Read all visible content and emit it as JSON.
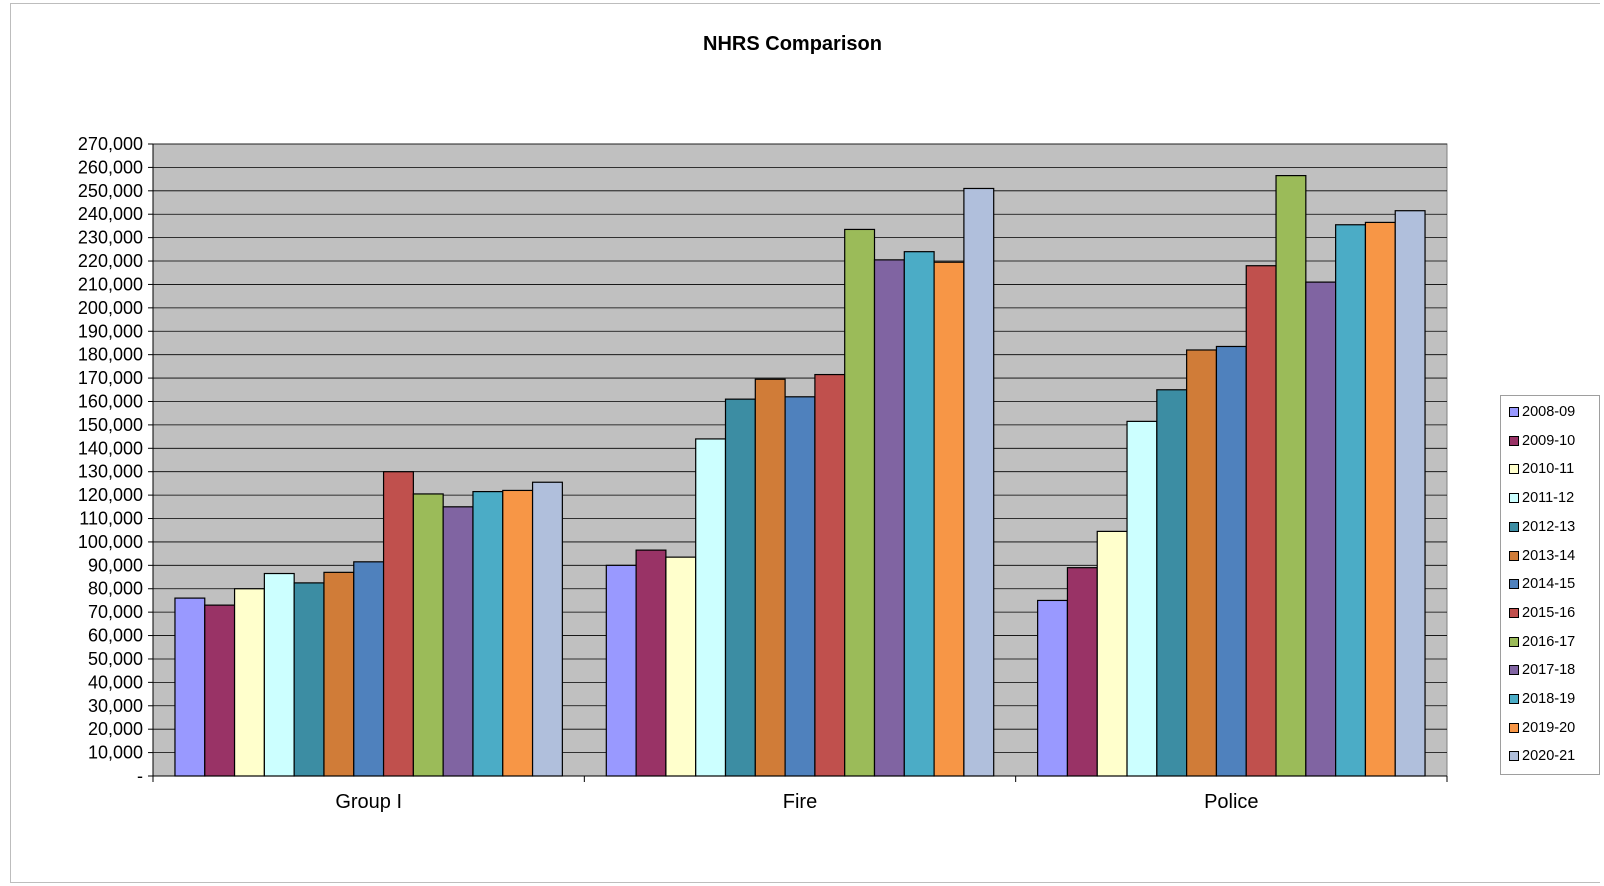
{
  "chart_data": {
    "type": "bar",
    "title": "NHRS Comparison",
    "xlabel": "",
    "ylabel": "",
    "categories": [
      "Group I",
      "Fire",
      "Police"
    ],
    "ylim": [
      0,
      270000
    ],
    "ytick_step": 10000,
    "yticks": [
      "-",
      "10,000",
      "20,000",
      "30,000",
      "40,000",
      "50,000",
      "60,000",
      "70,000",
      "80,000",
      "90,000",
      "100,000",
      "110,000",
      "120,000",
      "130,000",
      "140,000",
      "150,000",
      "160,000",
      "170,000",
      "180,000",
      "190,000",
      "200,000",
      "210,000",
      "220,000",
      "230,000",
      "240,000",
      "250,000",
      "260,000",
      "270,000"
    ],
    "grid": true,
    "legend_position": "right",
    "plot_background": "#c0c0c0",
    "series": [
      {
        "name": "2008-09",
        "color": "#9999ff",
        "values": [
          76000,
          90000,
          75000
        ]
      },
      {
        "name": "2009-10",
        "color": "#993366",
        "values": [
          73000,
          96500,
          89000
        ]
      },
      {
        "name": "2010-11",
        "color": "#ffffcc",
        "values": [
          80000,
          93500,
          104500
        ]
      },
      {
        "name": "2011-12",
        "color": "#ccffff",
        "values": [
          86500,
          144000,
          151500
        ]
      },
      {
        "name": "2012-13",
        "color": "#3c8da3",
        "values": [
          82500,
          161000,
          165000
        ]
      },
      {
        "name": "2013-14",
        "color": "#d07c38",
        "values": [
          87000,
          169500,
          182000
        ]
      },
      {
        "name": "2014-15",
        "color": "#4f81bd",
        "values": [
          91500,
          162000,
          183500
        ]
      },
      {
        "name": "2015-16",
        "color": "#c0504d",
        "values": [
          130000,
          171500,
          218000
        ]
      },
      {
        "name": "2016-17",
        "color": "#9bbb59",
        "values": [
          120500,
          233500,
          256500
        ]
      },
      {
        "name": "2017-18",
        "color": "#8064a2",
        "values": [
          115000,
          220500,
          211000
        ]
      },
      {
        "name": "2018-19",
        "color": "#4bacc6",
        "values": [
          121500,
          224000,
          235500
        ]
      },
      {
        "name": "2019-20",
        "color": "#f79646",
        "values": [
          122000,
          219500,
          236500
        ]
      },
      {
        "name": "2020-21",
        "color": "#b0bfdc",
        "values": [
          125500,
          251000,
          241500
        ]
      }
    ]
  }
}
